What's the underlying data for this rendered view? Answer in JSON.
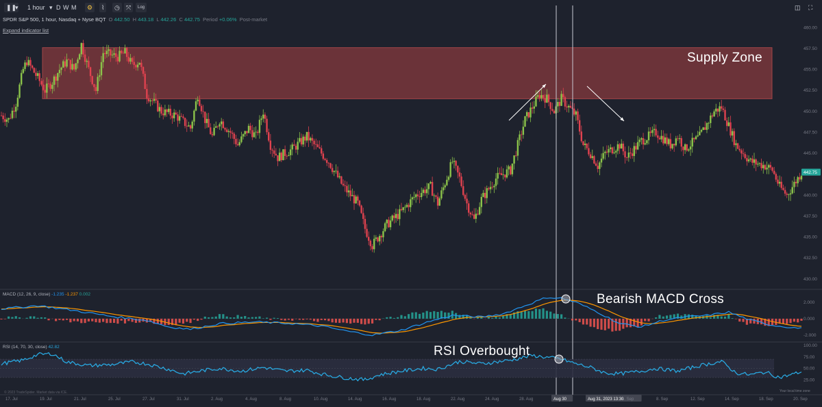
{
  "toolbar": {
    "interval": "1 hour",
    "periods": [
      "D",
      "W",
      "M"
    ],
    "log_label": "Log"
  },
  "legend": {
    "symbol": "SPDR S&P 500, 1 hour, Nasdaq + Nyse BQT",
    "o_label": "O",
    "o": "442.50",
    "h_label": "H",
    "h": "443.18",
    "l_label": "L",
    "l": "442.26",
    "c_label": "C",
    "c": "442.75",
    "period_label": "Period",
    "period": "+0.06%",
    "session": "Post-market",
    "expand": "Expand indicator list"
  },
  "annotations": {
    "supply_zone": "Supply Zone",
    "macd_cross": "Bearish MACD Cross",
    "rsi_overbought": "RSI Overbought"
  },
  "macd_legend": {
    "name": "MACD (12, 26, 9, close)",
    "v1": "-1.235",
    "v2": "-1.237",
    "v3": "0.002"
  },
  "rsi_legend": {
    "name": "RSI (14, 70, 30, close)",
    "v1": "42.82"
  },
  "footer": {
    "copyright": "© 2023 TradeSpider. Market data via ICE.",
    "timezone": "Your local time zone"
  },
  "colors": {
    "up": "#8bc34a",
    "down": "#e0424f",
    "macd": "#2196f3",
    "signal": "#ff9800",
    "rsi": "#29a8e0",
    "zone": "#8b3a3e",
    "bg": "#1e222d"
  },
  "chart_data": {
    "type": "candlestick",
    "price_axis": {
      "ticks": [
        "460.00",
        "457.50",
        "455.00",
        "452.50",
        "450.00",
        "447.50",
        "445.00",
        "442.50",
        "440.00",
        "437.50",
        "435.00",
        "432.50",
        "430.00"
      ],
      "range": [
        429,
        461
      ],
      "last": "442.75"
    },
    "x_axis": {
      "ticks": [
        "17. Jul",
        "19. Jul",
        "21. Jul",
        "25. Jul",
        "27. Jul",
        "31. Jul",
        "2. Aug",
        "4. Aug",
        "8. Aug",
        "10. Aug",
        "14. Aug",
        "16. Aug",
        "18. Aug",
        "22. Aug",
        "24. Aug",
        "28. Aug",
        "Aug 30",
        "Aug 31, 2023 13:30",
        "6. Sep",
        "8. Sep",
        "12. Sep",
        "14. Sep",
        "18. Sep",
        "20. Sep"
      ]
    },
    "supply_zone": [
      451.5,
      457.6
    ],
    "price_path": [
      [
        0,
        449.5
      ],
      [
        2,
        449
      ],
      [
        4,
        451
      ],
      [
        6,
        455
      ],
      [
        7,
        456
      ],
      [
        10,
        454
      ],
      [
        12,
        452.5
      ],
      [
        14,
        453.5
      ],
      [
        16,
        455
      ],
      [
        18,
        456
      ],
      [
        20,
        455
      ],
      [
        22,
        458
      ],
      [
        24,
        455
      ],
      [
        26,
        452.5
      ],
      [
        28,
        457
      ],
      [
        32,
        456.5
      ],
      [
        34,
        457
      ],
      [
        36,
        455.5
      ],
      [
        38,
        456
      ],
      [
        40,
        452
      ],
      [
        44,
        450
      ],
      [
        48,
        449.5
      ],
      [
        52,
        448
      ],
      [
        54,
        452
      ],
      [
        56,
        449
      ],
      [
        58,
        447
      ],
      [
        60,
        449
      ],
      [
        63,
        447.5
      ],
      [
        65,
        446
      ],
      [
        68,
        448
      ],
      [
        70,
        447
      ],
      [
        72,
        450
      ],
      [
        74,
        446
      ],
      [
        76,
        444.5
      ],
      [
        80,
        445.5
      ],
      [
        84,
        447
      ],
      [
        86,
        446
      ],
      [
        90,
        444
      ],
      [
        94,
        441
      ],
      [
        98,
        439
      ],
      [
        100,
        436
      ],
      [
        102,
        434
      ],
      [
        106,
        436.5
      ],
      [
        110,
        438
      ],
      [
        114,
        440
      ],
      [
        118,
        441
      ],
      [
        120,
        439
      ],
      [
        124,
        444
      ],
      [
        126,
        442
      ],
      [
        128,
        439
      ],
      [
        130,
        437
      ],
      [
        132,
        439.5
      ],
      [
        136,
        442
      ],
      [
        140,
        443
      ],
      [
        142,
        446
      ],
      [
        144,
        449
      ],
      [
        146,
        450.5
      ],
      [
        148,
        452
      ],
      [
        150,
        451.5
      ],
      [
        152,
        450
      ],
      [
        154,
        451.5
      ],
      [
        156,
        450.5
      ],
      [
        158,
        449.5
      ],
      [
        160,
        446
      ],
      [
        162,
        445
      ],
      [
        164,
        443.5
      ],
      [
        166,
        445
      ],
      [
        170,
        446
      ],
      [
        172,
        444.5
      ],
      [
        176,
        446.5
      ],
      [
        180,
        447.5
      ],
      [
        184,
        446
      ],
      [
        186,
        447
      ],
      [
        188,
        445.5
      ],
      [
        192,
        447
      ],
      [
        196,
        450
      ],
      [
        198,
        450.5
      ],
      [
        202,
        446
      ],
      [
        206,
        444
      ],
      [
        210,
        443.5
      ],
      [
        212,
        443
      ],
      [
        214,
        441
      ],
      [
        216,
        440
      ],
      [
        220,
        442.7
      ]
    ],
    "macd_axis": {
      "ticks": [
        "2.000",
        "0.000",
        "-2.000"
      ]
    },
    "rsi_axis": {
      "ticks": [
        "100.00",
        "75.00",
        "50.00",
        "25.00"
      ],
      "overbought": 70,
      "oversold": 30
    },
    "rsi_path": [
      [
        0,
        60
      ],
      [
        6,
        68
      ],
      [
        10,
        80
      ],
      [
        14,
        82
      ],
      [
        18,
        64
      ],
      [
        24,
        56
      ],
      [
        30,
        58
      ],
      [
        36,
        64
      ],
      [
        40,
        60
      ],
      [
        46,
        48
      ],
      [
        50,
        38
      ],
      [
        56,
        46
      ],
      [
        60,
        50
      ],
      [
        66,
        44
      ],
      [
        72,
        52
      ],
      [
        78,
        44
      ],
      [
        84,
        46
      ],
      [
        88,
        38
      ],
      [
        92,
        32
      ],
      [
        96,
        28
      ],
      [
        100,
        25
      ],
      [
        104,
        36
      ],
      [
        110,
        44
      ],
      [
        116,
        50
      ],
      [
        120,
        48
      ],
      [
        126,
        65
      ],
      [
        132,
        60
      ],
      [
        136,
        64
      ],
      [
        140,
        68
      ],
      [
        146,
        78
      ],
      [
        150,
        74
      ],
      [
        154,
        70
      ],
      [
        158,
        60
      ],
      [
        162,
        52
      ],
      [
        166,
        40
      ],
      [
        170,
        38
      ],
      [
        176,
        44
      ],
      [
        180,
        50
      ],
      [
        186,
        44
      ],
      [
        192,
        56
      ],
      [
        198,
        65
      ],
      [
        202,
        40
      ],
      [
        206,
        36
      ],
      [
        210,
        42
      ],
      [
        214,
        30
      ],
      [
        218,
        38
      ],
      [
        220,
        42.8
      ]
    ],
    "macd_path": [
      [
        0,
        1.2
      ],
      [
        10,
        1.6
      ],
      [
        20,
        1.0
      ],
      [
        30,
        0.3
      ],
      [
        40,
        -0.2
      ],
      [
        46,
        -1.0
      ],
      [
        52,
        -1.3
      ],
      [
        60,
        -0.6
      ],
      [
        70,
        -0.4
      ],
      [
        80,
        -0.6
      ],
      [
        88,
        -0.9
      ],
      [
        96,
        -1.6
      ],
      [
        102,
        -2.0
      ],
      [
        110,
        -1.4
      ],
      [
        118,
        -0.3
      ],
      [
        124,
        0.4
      ],
      [
        132,
        0.2
      ],
      [
        138,
        0.6
      ],
      [
        144,
        1.6
      ],
      [
        150,
        2.6
      ],
      [
        154,
        2.5
      ],
      [
        158,
        2.0
      ],
      [
        164,
        0.8
      ],
      [
        170,
        -0.6
      ],
      [
        176,
        -1.0
      ],
      [
        182,
        -0.2
      ],
      [
        188,
        0.2
      ],
      [
        194,
        0.4
      ],
      [
        200,
        0.8
      ],
      [
        206,
        -0.2
      ],
      [
        212,
        -0.8
      ],
      [
        220,
        -1.2
      ]
    ]
  }
}
